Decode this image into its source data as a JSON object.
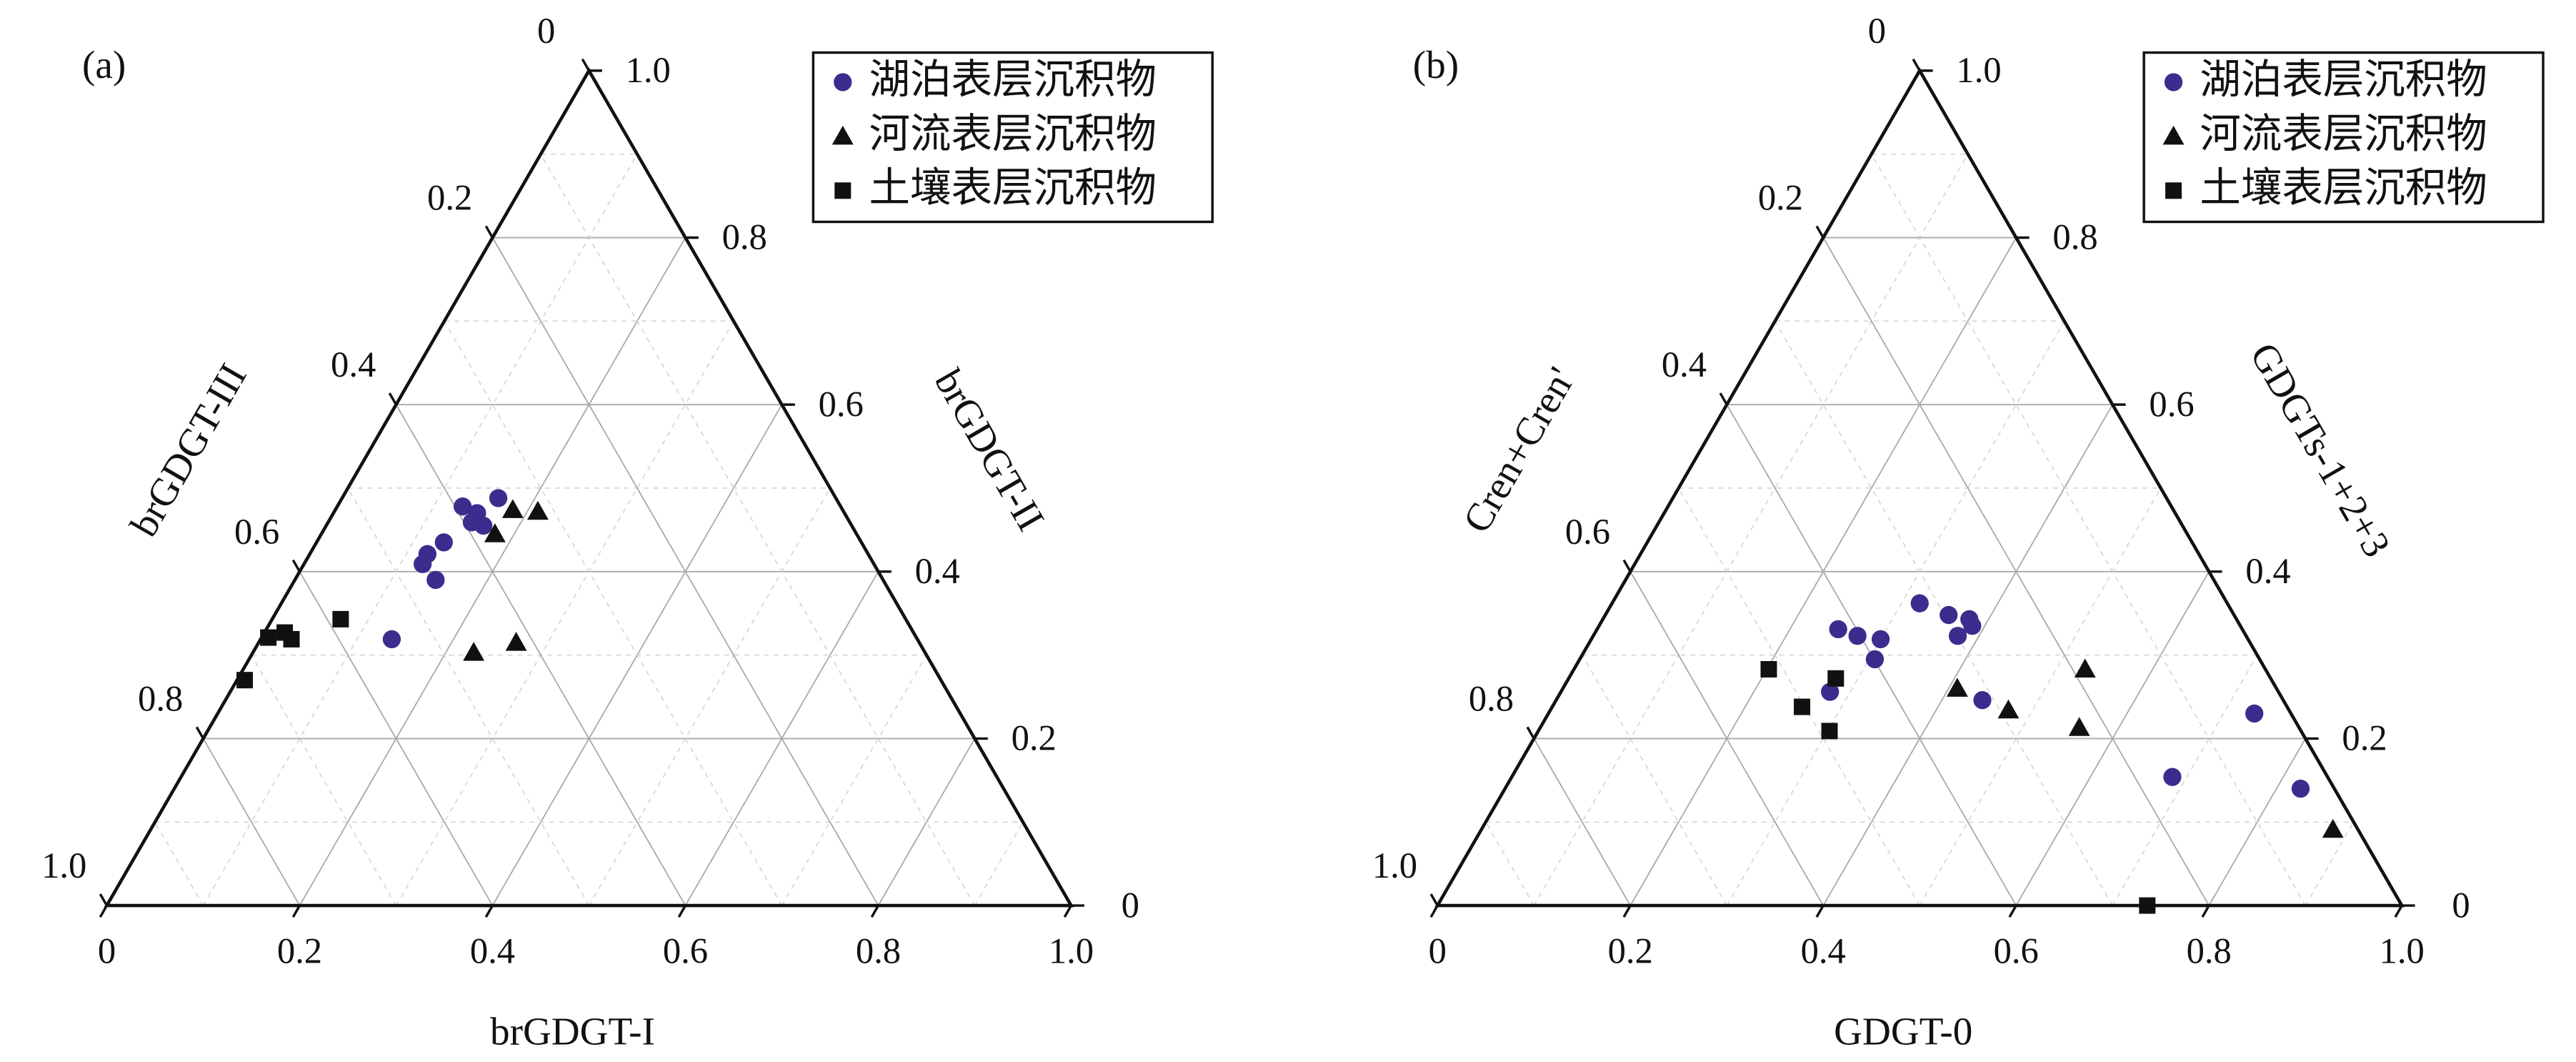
{
  "chart_data": [
    {
      "type": "ternary",
      "panel_label": "(a)",
      "axes": {
        "bottom": {
          "label": "brGDGT-I",
          "ticks": [
            0,
            0.2,
            0.4,
            0.6,
            0.8,
            {
              "value": 1,
              "label": "1.0"
            }
          ]
        },
        "right": {
          "label": "brGDGT-II",
          "ticks": [
            0,
            0.2,
            0.4,
            0.6,
            0.8,
            {
              "value": 1,
              "label": "1.0"
            }
          ]
        },
        "left": {
          "label": "brGDGT-III",
          "ticks": [
            0,
            0.2,
            0.4,
            0.6,
            0.8,
            {
              "value": 1,
              "label": "1.0"
            }
          ]
        }
      },
      "grid": true,
      "series": [
        {
          "name": "湖泊表层沉积物",
          "color": "#3d2c8d",
          "marker": "circle",
          "values": [
            [
              0.13,
              0.478,
              0.392
            ],
            [
              0.162,
              0.488,
              0.35
            ],
            [
              0.149,
              0.47,
              0.381
            ],
            [
              0.149,
              0.459,
              0.392
            ],
            [
              0.163,
              0.455,
              0.382
            ],
            [
              0.132,
              0.435,
              0.433
            ],
            [
              0.122,
              0.421,
              0.457
            ],
            [
              0.123,
              0.409,
              0.468
            ],
            [
              0.146,
              0.39,
              0.464
            ],
            [
              0.136,
              0.319,
              0.545
            ]
          ]
        },
        {
          "name": "河流表层沉积物",
          "color": "#111111",
          "marker": "triangle",
          "values": [
            [
              0.184,
              0.474,
              0.342
            ],
            [
              0.211,
              0.472,
              0.317
            ],
            [
              0.18,
              0.445,
              0.375
            ],
            [
              0.229,
              0.303,
              0.468
            ],
            [
              0.267,
              0.315,
              0.418
            ]
          ]
        },
        {
          "name": "土壤表层沉积物",
          "color": "#111111",
          "marker": "square",
          "values": [
            [
              0.071,
              0.343,
              0.586
            ],
            [
              0.021,
              0.327,
              0.652
            ],
            [
              0.007,
              0.321,
              0.672
            ],
            [
              0.032,
              0.319,
              0.649
            ],
            [
              0.008,
              0.27,
              0.722
            ]
          ]
        }
      ]
    },
    {
      "type": "ternary",
      "panel_label": "(b)",
      "axes": {
        "bottom": {
          "label": "GDGT-0",
          "ticks": [
            0,
            0.2,
            0.4,
            0.6,
            0.8,
            {
              "value": 1,
              "label": "1.0"
            }
          ]
        },
        "right": {
          "label": "GDGTs-1+2+3",
          "ticks": [
            0,
            0.2,
            0.4,
            0.6,
            0.8,
            {
              "value": 1,
              "label": "1.0"
            }
          ]
        },
        "left": {
          "label": "Cren+Cren'",
          "ticks": [
            0,
            0.2,
            0.4,
            0.6,
            0.8,
            {
              "value": 1,
              "label": "1.0"
            }
          ]
        }
      },
      "grid": true,
      "series": [
        {
          "name": "湖泊表层沉积物",
          "color": "#3d2c8d",
          "marker": "circle",
          "values": [
            [
              0.319,
              0.362,
              0.319
            ],
            [
              0.356,
              0.348,
              0.296
            ],
            [
              0.38,
              0.343,
              0.277
            ],
            [
              0.387,
              0.335,
              0.278
            ],
            [
              0.378,
              0.323,
              0.299
            ],
            [
              0.25,
              0.331,
              0.419
            ],
            [
              0.274,
              0.323,
              0.403
            ],
            [
              0.3,
              0.319,
              0.381
            ],
            [
              0.306,
              0.295,
              0.399
            ],
            [
              0.279,
              0.256,
              0.465
            ],
            [
              0.442,
              0.246,
              0.312
            ],
            [
              0.732,
              0.23,
              0.038
            ],
            [
              0.685,
              0.154,
              0.161
            ],
            [
              0.825,
              0.14,
              0.035
            ]
          ]
        },
        {
          "name": "河流表层沉积物",
          "color": "#111111",
          "marker": "triangle",
          "values": [
            [
              0.53,
              0.283,
              0.187
            ],
            [
              0.409,
              0.26,
              0.331
            ],
            [
              0.475,
              0.234,
              0.291
            ],
            [
              0.559,
              0.213,
              0.228
            ],
            [
              0.883,
              0.091,
              0.026
            ]
          ]
        },
        {
          "name": "土壤表层沉积物",
          "color": "#111111",
          "marker": "square",
          "values": [
            [
              0.202,
              0.283,
              0.515
            ],
            [
              0.277,
              0.272,
              0.451
            ],
            [
              0.259,
              0.238,
              0.503
            ],
            [
              0.302,
              0.209,
              0.489
            ],
            [
              0.736,
              0,
              0.264
            ]
          ]
        }
      ]
    }
  ]
}
